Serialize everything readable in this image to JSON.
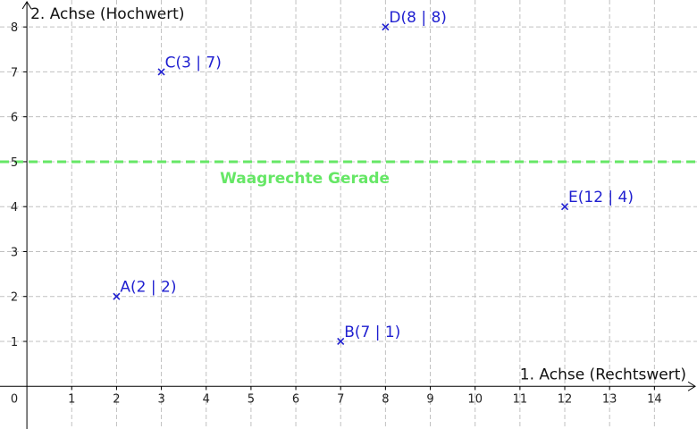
{
  "chart_data": {
    "type": "scatter",
    "xlabel": "1. Achse (Rechtswert)",
    "ylabel": "2. Achse (Hochwert)",
    "xlim": [
      -0.6,
      14.95
    ],
    "ylim": [
      -0.95,
      8.6
    ],
    "x_ticks": [
      1,
      2,
      3,
      4,
      5,
      6,
      7,
      8,
      9,
      10,
      11,
      12,
      13,
      14
    ],
    "y_ticks": [
      1,
      2,
      3,
      4,
      5,
      6,
      7,
      8
    ],
    "origin_label": "0",
    "grid": true,
    "points": [
      {
        "label": "A(2 | 2)",
        "x": 2,
        "y": 2
      },
      {
        "label": "B(7 | 1)",
        "x": 7,
        "y": 1
      },
      {
        "label": "C(3 | 7)",
        "x": 3,
        "y": 7
      },
      {
        "label": "D(8 | 8)",
        "x": 8,
        "y": 8
      },
      {
        "label": "E(12 | 4)",
        "x": 12,
        "y": 4
      }
    ],
    "lines": [
      {
        "label": "Waagrechte Gerade",
        "y": 5,
        "style": "dashed",
        "color": "#66e766"
      }
    ],
    "colors": {
      "points": "#1f1fd0",
      "grid": "#c0c0c0",
      "axes": "#000000",
      "line": "#66e766"
    }
  }
}
